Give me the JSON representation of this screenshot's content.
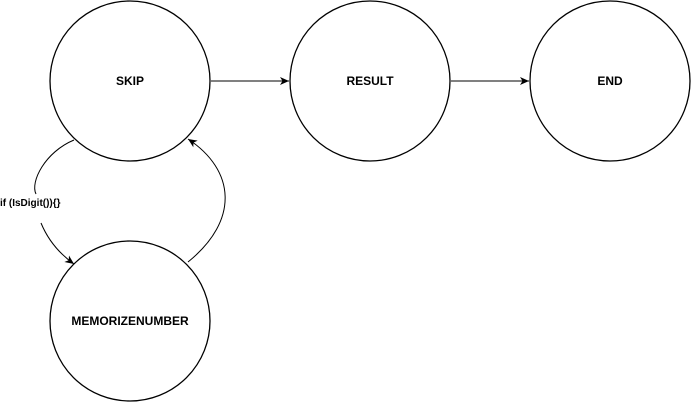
{
  "nodes": {
    "skip": {
      "label": "SKIP"
    },
    "result": {
      "label": "RESULT"
    },
    "end": {
      "label": "END"
    },
    "memorize": {
      "label": "MEMORIZENUMBER"
    }
  },
  "edges": {
    "skip_to_memorize": {
      "label": "if (IsDigit()){}"
    }
  }
}
